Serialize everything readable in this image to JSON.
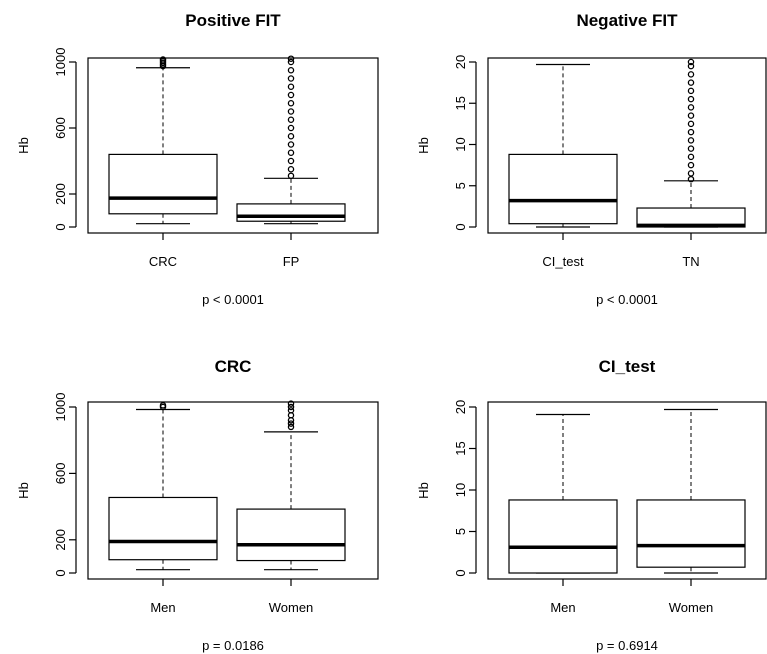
{
  "chart_data": [
    {
      "type": "box",
      "title": "Positive FIT",
      "ylabel": "Hb",
      "xlabel": "",
      "pvalue": "p < 0.0001",
      "ylim": [
        0,
        1000
      ],
      "yticks": [
        "0",
        "200",
        "600",
        "1000"
      ],
      "categories": [
        "CRC",
        "FP"
      ],
      "boxes": [
        {
          "lower_whisker": 20,
          "q1": 80,
          "median": 175,
          "q3": 440,
          "upper_whisker": 965,
          "outliers": [
            975,
            985,
            995,
            1005,
            1015
          ]
        },
        {
          "lower_whisker": 20,
          "q1": 35,
          "median": 65,
          "q3": 140,
          "upper_whisker": 295,
          "outliers": [
            310,
            350,
            400,
            450,
            500,
            550,
            600,
            650,
            700,
            750,
            800,
            850,
            900,
            950,
            1000,
            1020
          ]
        }
      ]
    },
    {
      "type": "box",
      "title": "Negative FIT",
      "ylabel": "Hb",
      "xlabel": "",
      "pvalue": "p < 0.0001",
      "ylim": [
        0,
        20
      ],
      "yticks": [
        "0",
        "5",
        "10",
        "15",
        "20"
      ],
      "categories": [
        "CI_test",
        "TN"
      ],
      "boxes": [
        {
          "lower_whisker": 0,
          "q1": 0.4,
          "median": 3.2,
          "q3": 8.8,
          "upper_whisker": 19.7,
          "outliers": []
        },
        {
          "lower_whisker": 0,
          "q1": 0,
          "median": 0.2,
          "q3": 2.3,
          "upper_whisker": 5.6,
          "outliers": [
            5.8,
            6.5,
            7.5,
            8.5,
            9.5,
            10.5,
            11.5,
            12.5,
            13.5,
            14.5,
            15.5,
            16.5,
            17.5,
            18.5,
            19.5,
            20
          ]
        }
      ]
    },
    {
      "type": "box",
      "title": "CRC",
      "ylabel": "Hb",
      "xlabel": "",
      "pvalue": "p = 0.0186",
      "ylim": [
        0,
        1000
      ],
      "yticks": [
        "0",
        "200",
        "600",
        "1000"
      ],
      "categories": [
        "Men",
        "Women"
      ],
      "boxes": [
        {
          "lower_whisker": 20,
          "q1": 80,
          "median": 190,
          "q3": 455,
          "upper_whisker": 985,
          "outliers": [
            1000,
            1010
          ]
        },
        {
          "lower_whisker": 20,
          "q1": 75,
          "median": 170,
          "q3": 385,
          "upper_whisker": 850,
          "outliers": [
            880,
            900,
            920,
            950,
            980,
            1000,
            1020
          ]
        }
      ]
    },
    {
      "type": "box",
      "title": "CI_test",
      "ylabel": "Hb",
      "xlabel": "",
      "pvalue": "p = 0.6914",
      "ylim": [
        0,
        20
      ],
      "yticks": [
        "0",
        "5",
        "10",
        "15",
        "20"
      ],
      "categories": [
        "Men",
        "Women"
      ],
      "boxes": [
        {
          "lower_whisker": 0,
          "q1": 0,
          "median": 3.1,
          "q3": 8.8,
          "upper_whisker": 19.1,
          "outliers": []
        },
        {
          "lower_whisker": 0,
          "q1": 0.7,
          "median": 3.3,
          "q3": 8.8,
          "upper_whisker": 19.7,
          "outliers": []
        }
      ]
    }
  ]
}
